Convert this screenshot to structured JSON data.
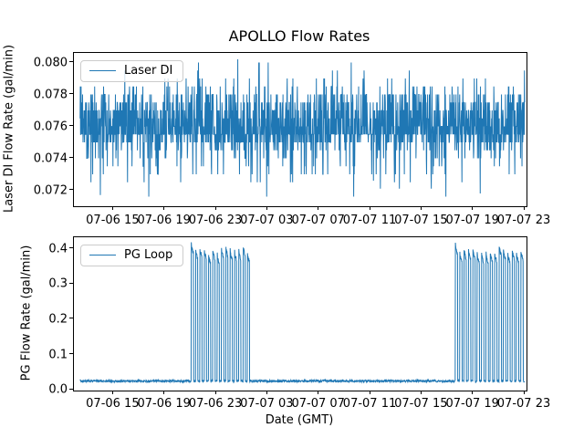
{
  "figure": {
    "title": "APOLLO Flow Rates",
    "background": "#ffffff",
    "spine_color": "#000000",
    "legend_border_color": "#cccccc",
    "line_color": "#1f77b4"
  },
  "xaxis": {
    "label": "Date (GMT)",
    "tick_labels": [
      "07-06 15",
      "07-06 19",
      "07-06 23",
      "07-07 03",
      "07-07 07",
      "07-07 11",
      "07-07 15",
      "07-07 19",
      "07-07 23"
    ],
    "tick_hours": [
      0,
      4,
      8,
      12,
      16,
      20,
      24,
      28,
      32
    ],
    "xlim_hours": [
      -3.08,
      32.14
    ]
  },
  "subplots": [
    {
      "id": "laser-di",
      "legend_label": "Laser DI",
      "ylabel": "Laser DI Flow Rate (gal/min)",
      "ytick_labels": [
        "0.072",
        "0.074",
        "0.076",
        "0.078",
        "0.080"
      ],
      "ytick_values": [
        0.072,
        0.074,
        0.076,
        0.078,
        0.08
      ],
      "ylim": [
        0.071,
        0.0806
      ]
    },
    {
      "id": "pg-loop",
      "legend_label": "PG Loop",
      "ylabel": "PG Flow Rate (gal/min)",
      "ytick_labels": [
        "0.0",
        "0.1",
        "0.2",
        "0.3",
        "0.4"
      ],
      "ytick_values": [
        0.0,
        0.1,
        0.2,
        0.3,
        0.4
      ],
      "ylim": [
        -0.002,
        0.433
      ]
    }
  ],
  "chart_data": [
    {
      "type": "line",
      "title": "APOLLO Flow Rates",
      "ylabel": "Laser DI Flow Rate (gal/min)",
      "xlabel": "Date (GMT)",
      "x_tick_labels": [
        "07-06 15",
        "07-06 19",
        "07-06 23",
        "07-07 03",
        "07-07 07",
        "07-07 11",
        "07-07 15",
        "07-07 19",
        "07-07 23"
      ],
      "ylim": [
        0.071,
        0.0806
      ],
      "yticks": [
        0.072,
        0.074,
        0.076,
        0.078,
        0.08
      ],
      "legend": [
        "Laser DI"
      ],
      "legend_position": "upper left",
      "line_color": "#1f77b4",
      "grid": false,
      "x_hours_range": [
        -2.6,
        32.0
      ],
      "series": [
        {
          "name": "Laser DI",
          "description": "Dense high-frequency noise, quantized in ~0.0005 gal/min steps; solid band 0.075-0.076, frequent excursions to 0.078, rare peaks to 0.080 and dips to 0.072",
          "n_points": 1800,
          "core_band": [
            0.075,
            0.076
          ],
          "typical_range": [
            0.074,
            0.078
          ],
          "min": 0.0716,
          "max": 0.0802,
          "quantization_step": 0.0005,
          "levels_distribution": [
            {
              "range": [
                0.075,
                0.076
              ],
              "p": 0.48
            },
            {
              "range": [
                0.0765,
                0.077
              ],
              "p": 0.2
            },
            {
              "range": [
                0.0775,
                0.0775
              ],
              "p": 0.08
            },
            {
              "range": [
                0.078,
                0.078
              ],
              "p": 0.085
            },
            {
              "range": [
                0.0785,
                0.0785
              ],
              "p": 0.03
            },
            {
              "range": [
                0.079,
                0.079
              ],
              "p": 0.013
            },
            {
              "range": [
                0.0795,
                0.0802
              ],
              "p": 0.005
            },
            {
              "range": [
                0.074,
                0.0745
              ],
              "p": 0.062
            },
            {
              "range": [
                0.073,
                0.0735
              ],
              "p": 0.035
            },
            {
              "range": [
                0.0725,
                0.0725
              ],
              "p": 0.0055
            },
            {
              "range": [
                0.0716,
                0.0726
              ],
              "p": 0.0045
            }
          ],
          "forced_points": [
            {
              "frac": 0.355,
              "value": 0.0802
            },
            {
              "frac": 0.046,
              "value": 0.0717
            },
            {
              "frac": 0.42,
              "value": 0.0716
            },
            {
              "frac": 0.9,
              "value": 0.0718
            }
          ]
        }
      ]
    },
    {
      "type": "line",
      "title": "",
      "ylabel": "PG Flow Rate (gal/min)",
      "xlabel": "Date (GMT)",
      "x_tick_labels": [
        "07-06 15",
        "07-06 19",
        "07-06 23",
        "07-07 03",
        "07-07 07",
        "07-07 11",
        "07-07 15",
        "07-07 19",
        "07-07 23"
      ],
      "ylim": [
        -0.002,
        0.433
      ],
      "yticks": [
        0.0,
        0.1,
        0.2,
        0.3,
        0.4
      ],
      "legend": [
        "PG Loop"
      ],
      "legend_position": "upper left",
      "line_color": "#1f77b4",
      "grid": false,
      "x_hours_range": [
        -2.6,
        32.0
      ],
      "series": [
        {
          "name": "PG Loop",
          "description": "Flat baseline ~0.025 gal/min with two bursts of square pulses reaching ~0.37-0.41 gal/min",
          "n_points": 1900,
          "baseline": 0.025,
          "baseline_noise": 0.006,
          "pulse_groups": [
            {
              "start_label": "07-06 ~21:00",
              "end_label": "07-07 ~01:45",
              "start_h": 6.05,
              "end_h": 10.75,
              "period_h": 0.336,
              "on_h": 0.17,
              "first_peak": 0.408,
              "peak_min": 0.375,
              "peak_max": 0.403
            },
            {
              "start_label": "07-07 ~17:35",
              "end_label": "07-07 23:00",
              "start_h": 26.6,
              "end_h": 32.05,
              "period_h": 0.34,
              "on_h": 0.18,
              "first_peak": 0.408,
              "peak_min": 0.375,
              "peak_max": 0.403
            }
          ]
        }
      ]
    }
  ]
}
